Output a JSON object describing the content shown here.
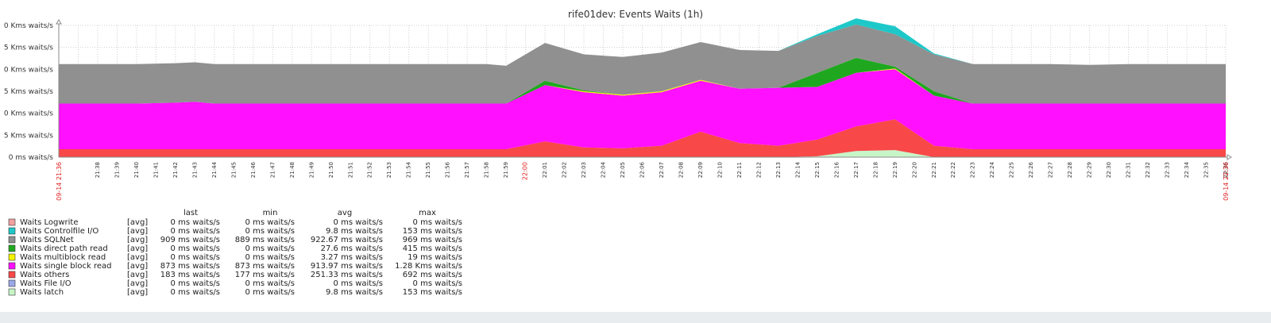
{
  "chart_data": {
    "type": "area",
    "stacked": true,
    "title": "rife01dev: Events Waits (1h)",
    "ylim": [
      0,
      1.5
    ],
    "y_ticks": [
      {
        "value": 0,
        "label": "0 ms waits/s"
      },
      {
        "value": 0.25,
        "label": "5 Kms waits/s"
      },
      {
        "value": 0.5,
        "label": "0 Kms waits/s"
      },
      {
        "value": 0.75,
        "label": "5 Kms waits/s"
      },
      {
        "value": 1.0,
        "label": "0 Kms waits/s"
      },
      {
        "value": 1.25,
        "label": "5 Kms waits/s"
      },
      {
        "value": 1.5,
        "label": "0 Kms waits/s"
      }
    ],
    "x_tick_labels": [
      "21:38",
      "21:39",
      "21:40",
      "21:41",
      "21:42",
      "21:43",
      "21:44",
      "21:45",
      "21:46",
      "21:47",
      "21:48",
      "21:49",
      "21:50",
      "21:51",
      "21:52",
      "21:53",
      "21:54",
      "21:55",
      "21:56",
      "21:57",
      "21:58",
      "21:59",
      "22:00",
      "22:01",
      "22:02",
      "22:03",
      "22:04",
      "22:05",
      "22:06",
      "22:07",
      "22:08",
      "22:09",
      "22:10",
      "22:11",
      "22:12",
      "22:13",
      "22:14",
      "22:15",
      "22:16",
      "22:17",
      "22:18",
      "22:19",
      "22:20",
      "22:21",
      "22:22",
      "22:23",
      "22:24",
      "22:25",
      "22:26",
      "22:27",
      "22:28",
      "22:29",
      "22:30",
      "22:31",
      "22:32",
      "22:33",
      "22:34",
      "22:35",
      "22:36"
    ],
    "x_red_labels": [
      "22:00"
    ],
    "x_start_label": "09-14 21:36",
    "x_end_label": "09-14 22:36",
    "x": [
      "21:36",
      "21:38",
      "21:40",
      "21:42",
      "21:43",
      "21:44",
      "21:46",
      "21:48",
      "21:50",
      "21:52",
      "21:54",
      "21:56",
      "21:58",
      "21:59",
      "22:01",
      "22:03",
      "22:05",
      "22:07",
      "22:09",
      "22:11",
      "22:13",
      "22:15",
      "22:17",
      "22:19",
      "22:21",
      "22:23",
      "22:25",
      "22:27",
      "22:29",
      "22:31",
      "22:33",
      "22:36"
    ],
    "series": [
      {
        "name": "Waits Logwrite",
        "values": [
          0,
          0,
          0,
          0,
          0,
          0,
          0,
          0,
          0,
          0,
          0,
          0,
          0,
          0,
          0,
          0,
          0,
          0,
          0,
          0,
          0,
          0,
          0,
          0,
          0,
          0,
          0,
          0,
          0,
          0,
          0,
          0
        ]
      },
      {
        "name": "Waits Controlfile I/O",
        "values": [
          0,
          0,
          0,
          0,
          0,
          0,
          0,
          0,
          0,
          0,
          0,
          0,
          0,
          0,
          0,
          0,
          0,
          0,
          0,
          0,
          0,
          0.02,
          0.07,
          0.09,
          0.01,
          0,
          0,
          0,
          0,
          0,
          0,
          0
        ]
      },
      {
        "name": "Waits SQLNet",
        "values": [
          0.45,
          0.45,
          0.45,
          0.45,
          0.45,
          0.45,
          0.45,
          0.45,
          0.45,
          0.45,
          0.45,
          0.45,
          0.45,
          0.43,
          0.43,
          0.41,
          0.43,
          0.44,
          0.43,
          0.44,
          0.42,
          0.42,
          0.38,
          0.37,
          0.42,
          0.45,
          0.45,
          0.45,
          0.44,
          0.45,
          0.45,
          0.45
        ]
      },
      {
        "name": "Waits direct path read",
        "values": [
          0,
          0,
          0,
          0,
          0,
          0,
          0,
          0,
          0,
          0,
          0,
          0,
          0,
          0,
          0.05,
          0.01,
          0,
          0,
          0,
          0,
          0,
          0.16,
          0.17,
          0.02,
          0.05,
          0,
          0,
          0,
          0,
          0,
          0,
          0
        ]
      },
      {
        "name": "Waits multiblock read",
        "values": [
          0,
          0,
          0,
          0,
          0,
          0,
          0,
          0,
          0,
          0,
          0,
          0,
          0,
          0,
          0,
          0.01,
          0.01,
          0.01,
          0.01,
          0,
          0,
          0,
          0,
          0.01,
          0,
          0,
          0,
          0,
          0,
          0,
          0,
          0
        ]
      },
      {
        "name": "Waits single block read",
        "values": [
          0.52,
          0.52,
          0.52,
          0.53,
          0.54,
          0.52,
          0.52,
          0.52,
          0.52,
          0.52,
          0.52,
          0.52,
          0.52,
          0.52,
          0.64,
          0.63,
          0.6,
          0.61,
          0.58,
          0.62,
          0.66,
          0.6,
          0.61,
          0.57,
          0.57,
          0.52,
          0.52,
          0.52,
          0.52,
          0.52,
          0.52,
          0.52
        ]
      },
      {
        "name": "Waits others",
        "values": [
          0.09,
          0.09,
          0.09,
          0.09,
          0.09,
          0.09,
          0.09,
          0.09,
          0.09,
          0.09,
          0.09,
          0.09,
          0.09,
          0.09,
          0.18,
          0.11,
          0.1,
          0.13,
          0.29,
          0.16,
          0.13,
          0.19,
          0.28,
          0.35,
          0.13,
          0.09,
          0.09,
          0.09,
          0.09,
          0.09,
          0.09,
          0.09
        ]
      },
      {
        "name": "Waits File I/O",
        "values": [
          0,
          0,
          0,
          0,
          0,
          0,
          0,
          0,
          0,
          0,
          0,
          0,
          0,
          0,
          0,
          0,
          0,
          0,
          0,
          0,
          0,
          0,
          0,
          0,
          0,
          0,
          0,
          0,
          0,
          0,
          0,
          0
        ]
      },
      {
        "name": "Waits latch",
        "values": [
          0,
          0,
          0,
          0,
          0,
          0,
          0,
          0,
          0,
          0,
          0,
          0,
          0,
          0,
          0,
          0,
          0,
          0,
          0,
          0,
          0,
          0.01,
          0.07,
          0.08,
          0,
          0,
          0,
          0,
          0,
          0,
          0,
          0
        ]
      }
    ],
    "legend": {
      "headers": {
        "last": "last",
        "min": "min",
        "avg": "avg",
        "max": "max"
      },
      "rows": [
        {
          "name": "Waits Logwrite",
          "func": "[avg]",
          "color": "#F1A0A0",
          "last": "0 ms waits/s",
          "min": "0 ms waits/s",
          "avg": "0 ms waits/s",
          "max": "0 ms waits/s"
        },
        {
          "name": "Waits Controlfile I/O",
          "func": "[avg]",
          "color": "#1EC8C8",
          "last": "0 ms waits/s",
          "min": "0 ms waits/s",
          "avg": "9.8 ms waits/s",
          "max": "153 ms waits/s"
        },
        {
          "name": "Waits SQLNet",
          "func": "[avg]",
          "color": "#909090",
          "last": "909 ms waits/s",
          "min": "889 ms waits/s",
          "avg": "922.67 ms waits/s",
          "max": "969 ms waits/s"
        },
        {
          "name": "Waits direct path read",
          "func": "[avg]",
          "color": "#1FA81F",
          "last": "0 ms waits/s",
          "min": "0 ms waits/s",
          "avg": "27.6 ms waits/s",
          "max": "415 ms waits/s"
        },
        {
          "name": "Waits multiblock read",
          "func": "[avg]",
          "color": "#F5F500",
          "last": "0 ms waits/s",
          "min": "0 ms waits/s",
          "avg": "3.27 ms waits/s",
          "max": "19 ms waits/s"
        },
        {
          "name": "Waits single block read",
          "func": "[avg]",
          "color": "#FF10FF",
          "last": "873 ms waits/s",
          "min": "873 ms waits/s",
          "avg": "913.97 ms waits/s",
          "max": "1.28 Kms waits/s"
        },
        {
          "name": "Waits others",
          "func": "[avg]",
          "color": "#F84848",
          "last": "183 ms waits/s",
          "min": "177 ms waits/s",
          "avg": "251.33 ms waits/s",
          "max": "692 ms waits/s"
        },
        {
          "name": "Waits File I/O",
          "func": "[avg]",
          "color": "#9AA8E8",
          "last": "0 ms waits/s",
          "min": "0 ms waits/s",
          "avg": "0 ms waits/s",
          "max": "0 ms waits/s"
        },
        {
          "name": "Waits latch",
          "func": "[avg]",
          "color": "#C8F5C8",
          "last": "0 ms waits/s",
          "min": "0 ms waits/s",
          "avg": "9.8 ms waits/s",
          "max": "153 ms waits/s"
        }
      ]
    }
  }
}
